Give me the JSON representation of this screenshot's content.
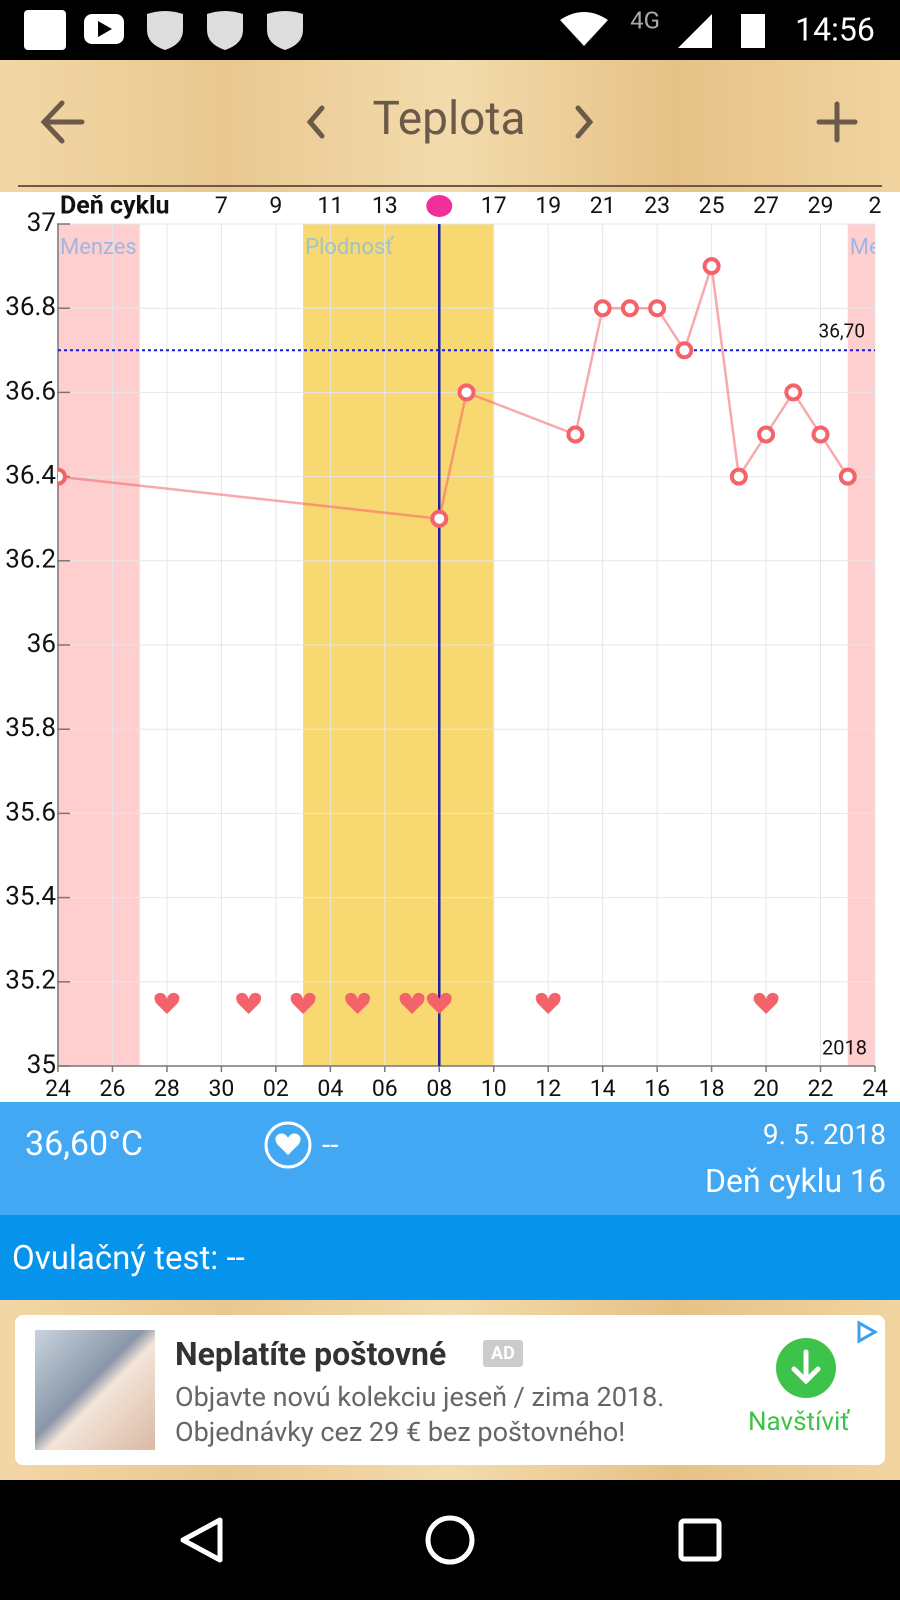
{
  "status_bar": {
    "network": "4G",
    "time": "14:56"
  },
  "header": {
    "title": "Teplota"
  },
  "chart_data": {
    "type": "line",
    "top_axis_title": "Deň cyklu",
    "x": [
      0,
      14,
      15,
      19,
      20,
      21,
      22,
      23,
      24,
      25,
      26,
      27,
      28,
      29
    ],
    "series": [
      {
        "color": "#f4626a",
        "values": [
          36.4,
          36.3,
          36.6,
          36.5,
          36.8,
          36.8,
          36.8,
          36.7,
          36.9,
          36.4,
          36.5,
          36.6,
          36.5,
          36.4
        ]
      }
    ],
    "xlim": [
      0,
      30
    ],
    "xticks": [
      {
        "value": 0,
        "label": "24"
      },
      {
        "value": 2,
        "label": "26"
      },
      {
        "value": 4,
        "label": "28"
      },
      {
        "value": 6,
        "label": "30"
      },
      {
        "value": 8,
        "label": "02"
      },
      {
        "value": 10,
        "label": "04"
      },
      {
        "value": 12,
        "label": "06"
      },
      {
        "value": 14,
        "label": "08"
      },
      {
        "value": 16,
        "label": "10"
      },
      {
        "value": 18,
        "label": "12"
      },
      {
        "value": 20,
        "label": "14"
      },
      {
        "value": 22,
        "label": "16"
      },
      {
        "value": 24,
        "label": "18"
      },
      {
        "value": 26,
        "label": "20"
      },
      {
        "value": 28,
        "label": "22"
      },
      {
        "value": 30,
        "label": "24"
      }
    ],
    "top_ticks": [
      {
        "value": 6,
        "label": "7"
      },
      {
        "value": 8,
        "label": "9"
      },
      {
        "value": 10,
        "label": "11"
      },
      {
        "value": 12,
        "label": "13"
      },
      {
        "value": 16,
        "label": "17"
      },
      {
        "value": 18,
        "label": "19"
      },
      {
        "value": 20,
        "label": "21"
      },
      {
        "value": 22,
        "label": "23"
      },
      {
        "value": 24,
        "label": "25"
      },
      {
        "value": 26,
        "label": "27"
      },
      {
        "value": 28,
        "label": "29"
      },
      {
        "value": 30,
        "label": "2"
      }
    ],
    "ylim": [
      35,
      37
    ],
    "yticks": [
      35,
      35.2,
      35.4,
      35.6,
      35.8,
      36,
      36.2,
      36.4,
      36.6,
      36.8,
      37
    ],
    "grid": true,
    "bands": [
      {
        "label": "Menzes",
        "from": 0,
        "to": 3,
        "color": "#ffcfcf",
        "label_color": "#9fb7e0"
      },
      {
        "label": "Plodnosť",
        "from": 9,
        "to": 16,
        "color": "#f8d870",
        "label_color": "#9fc4c8"
      },
      {
        "label": "Menzes",
        "from": 29,
        "to": 30,
        "color": "#ffcfcf",
        "label_color": "#9fb7e0"
      }
    ],
    "threshold": {
      "value": 36.7,
      "label": "36,70",
      "color": "#1a1adb"
    },
    "ovulation_day": 14,
    "hearts": [
      4,
      7,
      9,
      11,
      13,
      14,
      18,
      26
    ],
    "year_label": "2018"
  },
  "info": {
    "temperature": "36,60°C",
    "intercourse": "--",
    "date": "9. 5. 2018",
    "cycle_day": "Deň cyklu 16"
  },
  "ovulation_test": {
    "label": "Ovulačný test:",
    "value": "--"
  },
  "ad": {
    "title": "Neplatíte poštovné",
    "badge": "AD",
    "line1": "Objavte novú kolekciu jeseň / zima 2018.",
    "line2": "Objednávky cez 29 € bez poštovného!",
    "button": "Navštíviť"
  }
}
